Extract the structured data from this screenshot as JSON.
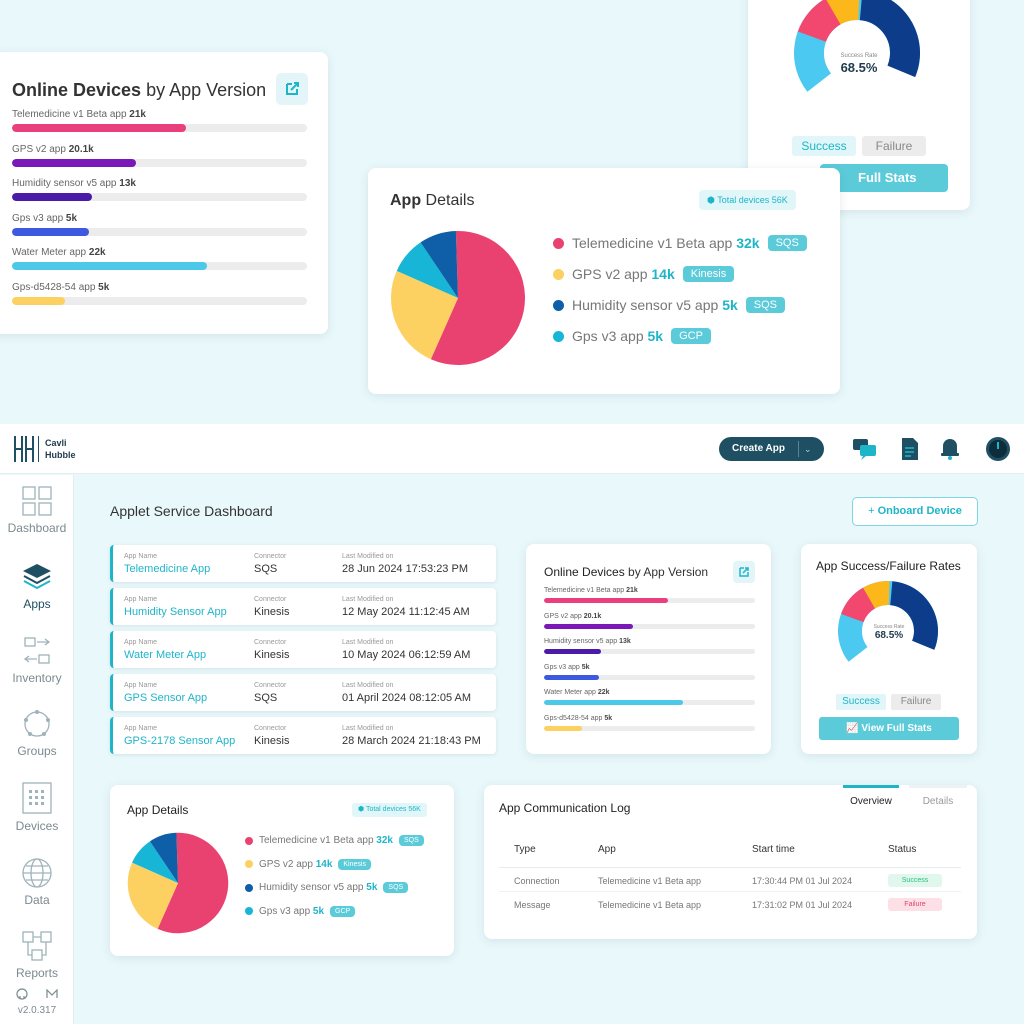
{
  "top_devices": {
    "title_bold": "Online Devices",
    "title_rest": " by App Version",
    "items": [
      {
        "label": "Telemedicine v1 Beta app",
        "value": "21k",
        "pct": 0.59,
        "color": "#ea3f7d"
      },
      {
        "label": "GPS v2 app",
        "value": "20.1k",
        "pct": 0.42,
        "color": "#7a18b8"
      },
      {
        "label": "Humidity sensor v5 app",
        "value": "13k",
        "pct": 0.27,
        "color": "#4a1aa8"
      },
      {
        "label": "Gps v3 app",
        "value": "5k",
        "pct": 0.26,
        "color": "#3d59e0"
      },
      {
        "label": "Water Meter app",
        "value": "22k",
        "pct": 0.66,
        "color": "#4cc9e8"
      },
      {
        "label": "Gps-d5428-54 app",
        "value": "5k",
        "pct": 0.18,
        "color": "#fcd162"
      }
    ]
  },
  "top_success": {
    "center_label": "Success Rate",
    "center_value": "68.5%",
    "legend_success": "Success",
    "legend_failure": "Failure",
    "button_partial": "Full Stats"
  },
  "top_app_details": {
    "title_bold": "App",
    "title_rest": " Details",
    "total_badge": "Total devices 56K",
    "items": [
      {
        "label": "Telemedicine v1 Beta app",
        "value": "32k",
        "tag": "SQS",
        "color": "#ea4270"
      },
      {
        "label": "GPS v2 app",
        "value": "14k",
        "tag": "Kinesis",
        "color": "#fcd162"
      },
      {
        "label": "Humidity sensor v5 app",
        "value": "5k",
        "tag": "SQS",
        "color": "#0e5fa8"
      },
      {
        "label": "Gps v3 app",
        "value": "5k",
        "tag": "GCP",
        "color": "#17b6d6"
      }
    ]
  },
  "header": {
    "brand_line1": "Cavli",
    "brand_line2": "Hubble",
    "create_app_label": "Create App"
  },
  "sidebar": {
    "items": [
      {
        "label": "Dashboard",
        "icon": "dashboard-icon"
      },
      {
        "label": "Apps",
        "icon": "layers-icon"
      },
      {
        "label": "Inventory",
        "icon": "inventory-icon"
      },
      {
        "label": "Groups",
        "icon": "groups-icon"
      },
      {
        "label": "Devices",
        "icon": "devices-icon"
      },
      {
        "label": "Data",
        "icon": "globe-icon"
      },
      {
        "label": "Reports",
        "icon": "reports-icon"
      }
    ],
    "version": "v2.0.317"
  },
  "page": {
    "title_bold": "Applet Service",
    "title_rest": " Dashboard",
    "onboard_label": "Onboard Device"
  },
  "apps_list": {
    "col_name": "App Name",
    "col_connector": "Connector",
    "col_modified": "Last Modified on",
    "rows": [
      {
        "name": "Telemedicine App",
        "connector": "SQS",
        "modified": "28 Jun 2024 17:53:23 PM"
      },
      {
        "name": "Humidity Sensor App",
        "connector": "Kinesis",
        "modified": "12 May 2024 11:12:45 AM"
      },
      {
        "name": "Water Meter App",
        "connector": "Kinesis",
        "modified": "10 May 2024 06:12:59 AM"
      },
      {
        "name": "GPS Sensor App",
        "connector": "SQS",
        "modified": "01 April 2024 08:12:05 AM"
      },
      {
        "name": "GPS-2178 Sensor App",
        "connector": "Kinesis",
        "modified": "28 March 2024 21:18:43 PM"
      }
    ]
  },
  "success_card": {
    "title_bold": "App Success/Failure",
    "title_rest": " Rates",
    "center_label": "Success Rate",
    "center_value": "68.5%",
    "legend_success": "Success",
    "legend_failure": "Failure",
    "button_label": "View Full Stats"
  },
  "comm_log": {
    "title_bold": "App Communication",
    "title_rest": " Log",
    "tab_overview": "Overview",
    "tab_details": "Details",
    "headers": [
      "Type",
      "App",
      "Start time",
      "Status"
    ],
    "rows": [
      {
        "type": "Connection",
        "app": "Telemedicine v1 Beta app",
        "start": "17:30:44 PM 01 Jul 2024",
        "status": "Success"
      },
      {
        "type": "Message",
        "app": "Telemedicine v1 Beta app",
        "start": "17:31:02 PM 01 Jul 2024",
        "status": "Failure"
      }
    ]
  },
  "colors": {
    "accent": "#1fb5c9",
    "dark_teal": "#1e4f62",
    "success_bg": "#dff7ec",
    "success_text": "#2bbf7d",
    "failure_bg": "#fde0e6",
    "failure_text": "#e0436a"
  }
}
